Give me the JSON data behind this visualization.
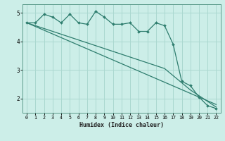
{
  "xlabel": "Humidex (Indice chaleur)",
  "background_color": "#cceee8",
  "line_color": "#2e7d6e",
  "grid_color": "#aad8d0",
  "x_data": [
    0,
    1,
    2,
    3,
    4,
    5,
    6,
    7,
    8,
    9,
    10,
    11,
    12,
    13,
    14,
    15,
    16,
    17,
    18,
    19,
    20,
    21,
    22
  ],
  "y_main": [
    4.65,
    4.65,
    4.95,
    4.85,
    4.65,
    4.95,
    4.65,
    4.6,
    5.05,
    4.85,
    4.6,
    4.6,
    4.65,
    4.35,
    4.35,
    4.65,
    4.55,
    3.9,
    2.6,
    2.45,
    2.05,
    1.75,
    1.65
  ],
  "y_line_upper": [
    4.65,
    4.55,
    4.45,
    4.35,
    4.25,
    4.15,
    4.05,
    3.95,
    3.85,
    3.75,
    3.65,
    3.55,
    3.45,
    3.35,
    3.25,
    3.15,
    3.05,
    2.8,
    2.55,
    2.3,
    2.1,
    1.9,
    1.7
  ],
  "y_line_lower": [
    4.65,
    4.52,
    4.39,
    4.26,
    4.13,
    4.0,
    3.87,
    3.74,
    3.61,
    3.48,
    3.35,
    3.22,
    3.09,
    2.96,
    2.83,
    2.7,
    2.57,
    2.44,
    2.31,
    2.18,
    2.05,
    1.92,
    1.79
  ],
  "ylim": [
    1.5,
    5.3
  ],
  "xlim": [
    -0.5,
    22.5
  ],
  "yticks": [
    2,
    3,
    4,
    5
  ],
  "xticks": [
    0,
    1,
    2,
    3,
    4,
    5,
    6,
    7,
    8,
    9,
    10,
    11,
    12,
    13,
    14,
    15,
    16,
    17,
    18,
    19,
    20,
    21,
    22
  ]
}
